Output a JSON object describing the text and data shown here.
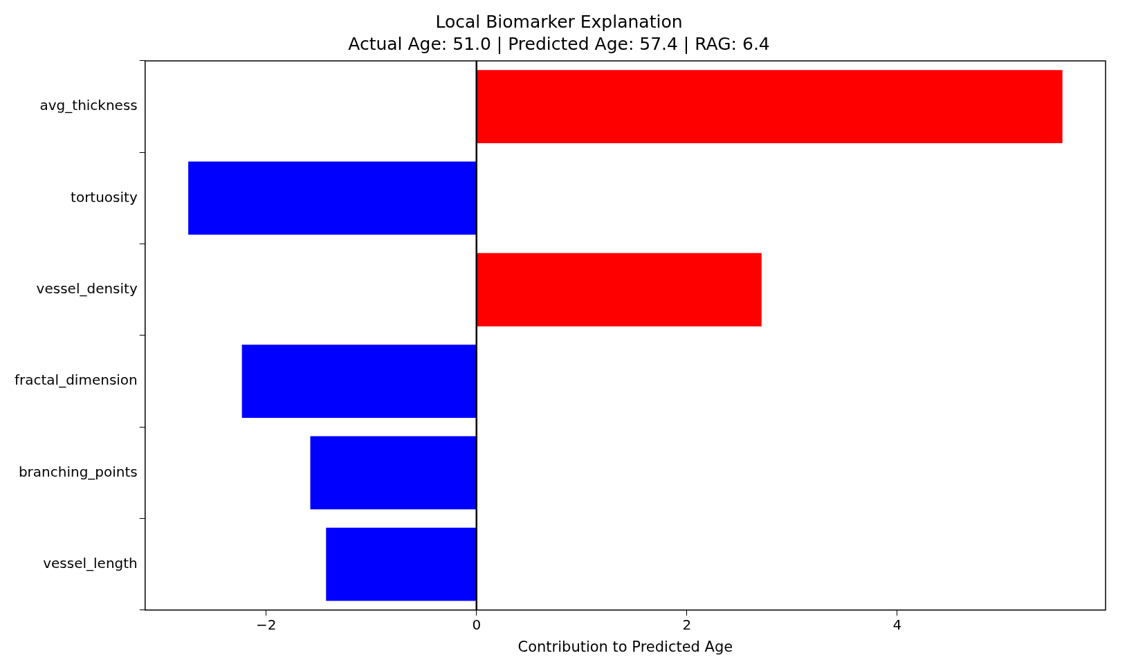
{
  "chart_data": {
    "type": "bar",
    "orientation": "horizontal",
    "title": "Local Biomarker Explanation",
    "subtitle": "Actual Age: 51.0 | Predicted Age: 57.4 | RAG: 6.4",
    "xlabel": "Contribution to Predicted Age",
    "categories": [
      "avg_thickness",
      "tortuosity",
      "vessel_density",
      "fractal_dimension",
      "branching_points",
      "vessel_length"
    ],
    "values": [
      5.57,
      -2.74,
      2.71,
      -2.23,
      -1.58,
      -1.43
    ],
    "colors": [
      "#ff0000",
      "#0000ff",
      "#ff0000",
      "#0000ff",
      "#0000ff",
      "#0000ff"
    ],
    "xlim": [
      -3.15,
      5.98
    ],
    "xticks": [
      {
        "value": -2,
        "label": "−2"
      },
      0,
      2,
      4
    ],
    "ref_lines": [
      {
        "axis": "x",
        "value": 0,
        "color": "#000000"
      }
    ],
    "grid": false,
    "legend": false
  }
}
